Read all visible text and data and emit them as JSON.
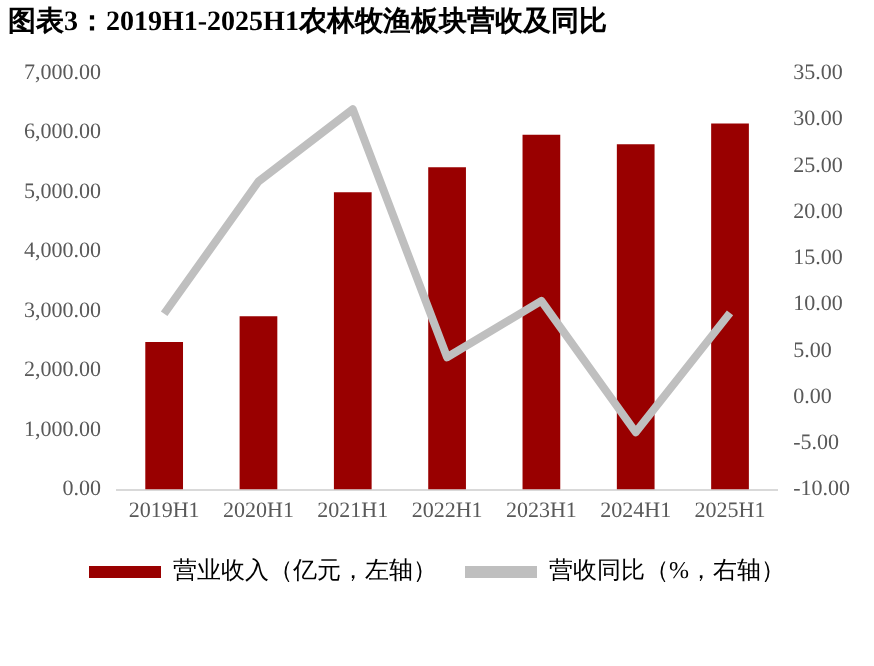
{
  "chart_data": {
    "type": "bar",
    "title": "图表3：2019H1-2025H1农林牧渔板块营收及同比",
    "categories": [
      "2019H1",
      "2020H1",
      "2021H1",
      "2022H1",
      "2023H1",
      "2024H1",
      "2025H1"
    ],
    "series": [
      {
        "name": "营业收入（亿元，左轴）",
        "color": "#990000",
        "values": [
          2480,
          2915,
          5000,
          5420,
          5965,
          5805,
          6155
        ]
      },
      {
        "name": "营收同比（%，右轴）",
        "type": "line",
        "axis": "y2",
        "color": "#bfbfbf",
        "marker": "none",
        "values": [
          9.0,
          23.3,
          31.1,
          4.3,
          10.4,
          -3.8,
          9.1
        ]
      }
    ],
    "ylim": [
      0,
      7000
    ],
    "yticks": [
      {
        "value": 0,
        "label": "0.00"
      },
      {
        "value": 1000,
        "label": "1,000.00"
      },
      {
        "value": 2000,
        "label": "2,000.00"
      },
      {
        "value": 3000,
        "label": "3,000.00"
      },
      {
        "value": 4000,
        "label": "4,000.00"
      },
      {
        "value": 5000,
        "label": "5,000.00"
      },
      {
        "value": 6000,
        "label": "6,000.00"
      },
      {
        "value": 7000,
        "label": "7,000.00"
      }
    ],
    "y2lim": [
      -10,
      35
    ],
    "y2ticks": [
      {
        "value": -10,
        "label": "-10.00"
      },
      {
        "value": -5,
        "label": "-5.00"
      },
      {
        "value": 0,
        "label": "0.00"
      },
      {
        "value": 5,
        "label": "5.00"
      },
      {
        "value": 10,
        "label": "10.00"
      },
      {
        "value": 15,
        "label": "15.00"
      },
      {
        "value": 20,
        "label": "20.00"
      },
      {
        "value": 25,
        "label": "25.00"
      },
      {
        "value": 30,
        "label": "30.00"
      },
      {
        "value": 35,
        "label": "35.00"
      }
    ],
    "grid": false,
    "legend": "bottom"
  }
}
